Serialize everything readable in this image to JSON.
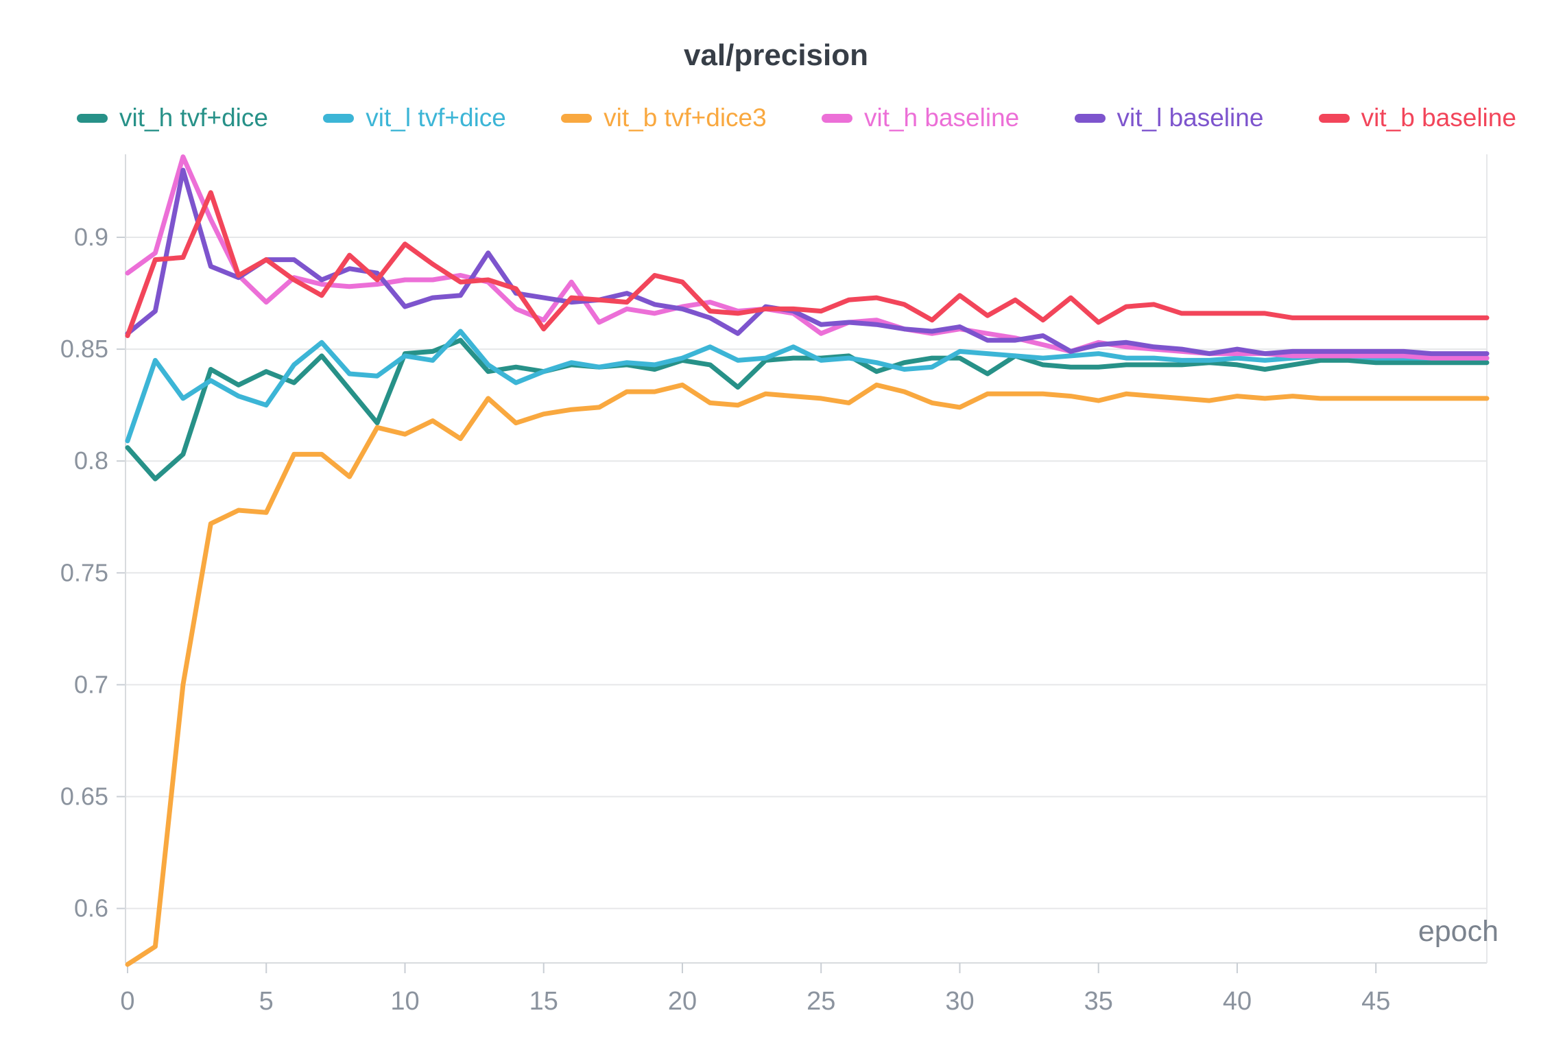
{
  "chart_data": {
    "type": "line",
    "title": "val/precision",
    "xlabel": "epoch",
    "x_ticks": [
      0,
      5,
      10,
      15,
      20,
      25,
      30,
      35,
      40,
      45
    ],
    "y_ticks": [
      0.9,
      0.85,
      0.8,
      0.75,
      0.7,
      0.65,
      0.6
    ],
    "xlim": [
      0,
      49
    ],
    "ylim": [
      0.575,
      0.937
    ],
    "grid": true,
    "legend_position": "top",
    "x": [
      0,
      1,
      2,
      3,
      4,
      5,
      6,
      7,
      8,
      9,
      10,
      11,
      12,
      13,
      14,
      15,
      16,
      17,
      18,
      19,
      20,
      21,
      22,
      23,
      24,
      25,
      26,
      27,
      28,
      29,
      30,
      31,
      32,
      33,
      34,
      35,
      36,
      37,
      38,
      39,
      40,
      41,
      42,
      43,
      44,
      45,
      46,
      47,
      48,
      49
    ],
    "series": [
      {
        "name": "vit_h tvf+dice",
        "color": "#279188",
        "values": [
          0.806,
          0.792,
          0.803,
          0.841,
          0.834,
          0.84,
          0.835,
          0.847,
          0.832,
          0.817,
          0.848,
          0.849,
          0.854,
          0.84,
          0.842,
          0.84,
          0.843,
          0.842,
          0.843,
          0.841,
          0.845,
          0.843,
          0.833,
          0.845,
          0.846,
          0.846,
          0.847,
          0.84,
          0.844,
          0.846,
          0.846,
          0.839,
          0.847,
          0.843,
          0.842,
          0.842,
          0.843,
          0.843,
          0.843,
          0.844,
          0.843,
          0.841,
          0.843,
          0.845,
          0.845,
          0.844,
          0.844,
          0.844,
          0.844,
          0.844
        ]
      },
      {
        "name": "vit_l tvf+dice",
        "color": "#3cb5d6",
        "values": [
          0.809,
          0.845,
          0.828,
          0.836,
          0.829,
          0.825,
          0.843,
          0.853,
          0.839,
          0.838,
          0.847,
          0.845,
          0.858,
          0.843,
          0.835,
          0.84,
          0.844,
          0.842,
          0.844,
          0.843,
          0.846,
          0.851,
          0.845,
          0.846,
          0.851,
          0.845,
          0.846,
          0.844,
          0.841,
          0.842,
          0.849,
          0.848,
          0.847,
          0.846,
          0.847,
          0.848,
          0.846,
          0.846,
          0.845,
          0.845,
          0.846,
          0.845,
          0.846,
          0.847,
          0.847,
          0.846,
          0.846,
          0.846,
          0.846,
          0.846
        ]
      },
      {
        "name": "vit_b tvf+dice3",
        "color": "#f9a83f",
        "values": [
          0.575,
          0.583,
          0.7,
          0.772,
          0.778,
          0.777,
          0.803,
          0.803,
          0.793,
          0.815,
          0.812,
          0.818,
          0.81,
          0.828,
          0.817,
          0.821,
          0.823,
          0.824,
          0.831,
          0.831,
          0.834,
          0.826,
          0.825,
          0.83,
          0.829,
          0.828,
          0.826,
          0.834,
          0.831,
          0.826,
          0.824,
          0.83,
          0.83,
          0.83,
          0.829,
          0.827,
          0.83,
          0.829,
          0.828,
          0.827,
          0.829,
          0.828,
          0.829,
          0.828,
          0.828,
          0.828,
          0.828,
          0.828,
          0.828,
          0.828
        ]
      },
      {
        "name": "vit_h baseline",
        "color": "#ec6fd7",
        "values": [
          0.884,
          0.893,
          0.936,
          0.908,
          0.883,
          0.871,
          0.882,
          0.879,
          0.878,
          0.879,
          0.881,
          0.881,
          0.883,
          0.88,
          0.868,
          0.863,
          0.88,
          0.862,
          0.868,
          0.866,
          0.869,
          0.871,
          0.867,
          0.868,
          0.866,
          0.857,
          0.862,
          0.863,
          0.859,
          0.857,
          0.859,
          0.857,
          0.855,
          0.852,
          0.849,
          0.853,
          0.851,
          0.85,
          0.849,
          0.848,
          0.848,
          0.848,
          0.847,
          0.847,
          0.847,
          0.847,
          0.847,
          0.846,
          0.846,
          0.846
        ]
      },
      {
        "name": "vit_l baseline",
        "color": "#7d54cd",
        "values": [
          0.857,
          0.867,
          0.93,
          0.887,
          0.882,
          0.89,
          0.89,
          0.881,
          0.886,
          0.884,
          0.869,
          0.873,
          0.874,
          0.893,
          0.875,
          0.873,
          0.871,
          0.872,
          0.875,
          0.87,
          0.868,
          0.864,
          0.857,
          0.869,
          0.867,
          0.861,
          0.862,
          0.861,
          0.859,
          0.858,
          0.86,
          0.854,
          0.854,
          0.856,
          0.849,
          0.852,
          0.853,
          0.851,
          0.85,
          0.848,
          0.85,
          0.848,
          0.849,
          0.849,
          0.849,
          0.849,
          0.849,
          0.848,
          0.848,
          0.848
        ]
      },
      {
        "name": "vit_b baseline",
        "color": "#f2455a",
        "values": [
          0.856,
          0.89,
          0.891,
          0.92,
          0.883,
          0.89,
          0.881,
          0.874,
          0.892,
          0.881,
          0.897,
          0.888,
          0.88,
          0.881,
          0.877,
          0.859,
          0.873,
          0.872,
          0.871,
          0.883,
          0.88,
          0.867,
          0.866,
          0.868,
          0.868,
          0.867,
          0.872,
          0.873,
          0.87,
          0.863,
          0.874,
          0.865,
          0.872,
          0.863,
          0.873,
          0.862,
          0.869,
          0.87,
          0.866,
          0.866,
          0.866,
          0.866,
          0.864,
          0.864,
          0.864,
          0.864,
          0.864,
          0.864,
          0.864,
          0.864
        ]
      }
    ]
  },
  "colors": {
    "title_text": "#373e47",
    "tick_label": "#8b939e",
    "axis_line": "#d8dbde",
    "gridline": "#e6e7e9",
    "tick_mark": "#c9ced4",
    "x_axis_title": "#7b838e"
  }
}
